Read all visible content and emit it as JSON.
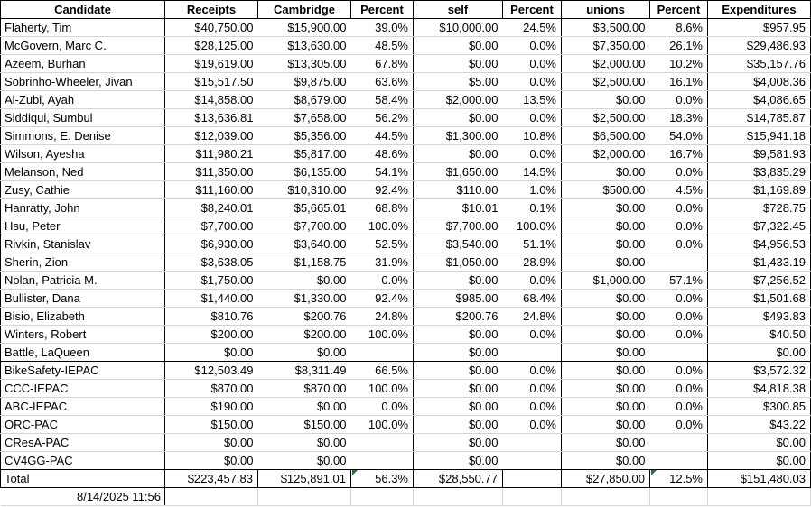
{
  "header": {
    "columns": [
      "Candidate",
      "Receipts",
      "Cambridge",
      "Percent",
      "self",
      "Percent",
      "unions",
      "Percent",
      "Expenditures"
    ]
  },
  "rows": [
    {
      "name": "Flaherty, Tim",
      "receipts": "$40,750.00",
      "cambridge": "$15,900.00",
      "cambridge_pct": "39.0%",
      "self": "$10,000.00",
      "self_pct": "24.5%",
      "unions": "$3,500.00",
      "unions_pct": "8.6%",
      "expenditures": "$957.95",
      "section": "candidates"
    },
    {
      "name": "McGovern, Marc C.",
      "receipts": "$28,125.00",
      "cambridge": "$13,630.00",
      "cambridge_pct": "48.5%",
      "self": "$0.00",
      "self_pct": "0.0%",
      "unions": "$7,350.00",
      "unions_pct": "26.1%",
      "expenditures": "$29,486.93",
      "section": "candidates"
    },
    {
      "name": "Azeem, Burhan",
      "receipts": "$19,619.00",
      "cambridge": "$13,305.00",
      "cambridge_pct": "67.8%",
      "self": "$0.00",
      "self_pct": "0.0%",
      "unions": "$2,000.00",
      "unions_pct": "10.2%",
      "expenditures": "$35,157.76",
      "section": "candidates"
    },
    {
      "name": "Sobrinho-Wheeler, Jivan",
      "receipts": "$15,517.50",
      "cambridge": "$9,875.00",
      "cambridge_pct": "63.6%",
      "self": "$5.00",
      "self_pct": "0.0%",
      "unions": "$2,500.00",
      "unions_pct": "16.1%",
      "expenditures": "$4,008.36",
      "section": "candidates"
    },
    {
      "name": "Al-Zubi, Ayah",
      "receipts": "$14,858.00",
      "cambridge": "$8,679.00",
      "cambridge_pct": "58.4%",
      "self": "$2,000.00",
      "self_pct": "13.5%",
      "unions": "$0.00",
      "unions_pct": "0.0%",
      "expenditures": "$4,086.65",
      "section": "candidates"
    },
    {
      "name": "Siddiqui, Sumbul",
      "receipts": "$13,636.81",
      "cambridge": "$7,658.00",
      "cambridge_pct": "56.2%",
      "self": "$0.00",
      "self_pct": "0.0%",
      "unions": "$2,500.00",
      "unions_pct": "18.3%",
      "expenditures": "$14,785.87",
      "section": "candidates"
    },
    {
      "name": "Simmons, E. Denise",
      "receipts": "$12,039.00",
      "cambridge": "$5,356.00",
      "cambridge_pct": "44.5%",
      "self": "$1,300.00",
      "self_pct": "10.8%",
      "unions": "$6,500.00",
      "unions_pct": "54.0%",
      "expenditures": "$15,941.18",
      "section": "candidates"
    },
    {
      "name": "Wilson, Ayesha",
      "receipts": "$11,980.21",
      "cambridge": "$5,817.00",
      "cambridge_pct": "48.6%",
      "self": "$0.00",
      "self_pct": "0.0%",
      "unions": "$2,000.00",
      "unions_pct": "16.7%",
      "expenditures": "$9,581.93",
      "section": "candidates"
    },
    {
      "name": "Melanson, Ned",
      "receipts": "$11,350.00",
      "cambridge": "$6,135.00",
      "cambridge_pct": "54.1%",
      "self": "$1,650.00",
      "self_pct": "14.5%",
      "unions": "$0.00",
      "unions_pct": "0.0%",
      "expenditures": "$3,835.29",
      "section": "candidates"
    },
    {
      "name": "Zusy, Cathie",
      "receipts": "$11,160.00",
      "cambridge": "$10,310.00",
      "cambridge_pct": "92.4%",
      "self": "$110.00",
      "self_pct": "1.0%",
      "unions": "$500.00",
      "unions_pct": "4.5%",
      "expenditures": "$1,169.89",
      "section": "candidates"
    },
    {
      "name": "Hanratty, John",
      "receipts": "$8,240.01",
      "cambridge": "$5,665.01",
      "cambridge_pct": "68.8%",
      "self": "$10.01",
      "self_pct": "0.1%",
      "unions": "$0.00",
      "unions_pct": "0.0%",
      "expenditures": "$728.75",
      "section": "candidates"
    },
    {
      "name": "Hsu, Peter",
      "receipts": "$7,700.00",
      "cambridge": "$7,700.00",
      "cambridge_pct": "100.0%",
      "self": "$7,700.00",
      "self_pct": "100.0%",
      "unions": "$0.00",
      "unions_pct": "0.0%",
      "expenditures": "$7,322.45",
      "section": "candidates"
    },
    {
      "name": "Rivkin, Stanislav",
      "receipts": "$6,930.00",
      "cambridge": "$3,640.00",
      "cambridge_pct": "52.5%",
      "self": "$3,540.00",
      "self_pct": "51.1%",
      "unions": "$0.00",
      "unions_pct": "0.0%",
      "expenditures": "$4,956.53",
      "section": "candidates"
    },
    {
      "name": "Sherin, Zion",
      "receipts": "$3,638.05",
      "cambridge": "$1,158.75",
      "cambridge_pct": "31.9%",
      "self": "$1,050.00",
      "self_pct": "28.9%",
      "unions": "$0.00",
      "unions_pct": "",
      "expenditures": "$1,433.19",
      "section": "candidates"
    },
    {
      "name": "Nolan, Patricia M.",
      "receipts": "$1,750.00",
      "cambridge": "$0.00",
      "cambridge_pct": "0.0%",
      "self": "$0.00",
      "self_pct": "0.0%",
      "unions": "$1,000.00",
      "unions_pct": "57.1%",
      "expenditures": "$7,256.52",
      "section": "candidates"
    },
    {
      "name": "Bullister, Dana",
      "receipts": "$1,440.00",
      "cambridge": "$1,330.00",
      "cambridge_pct": "92.4%",
      "self": "$985.00",
      "self_pct": "68.4%",
      "unions": "$0.00",
      "unions_pct": "0.0%",
      "expenditures": "$1,501.68",
      "section": "candidates"
    },
    {
      "name": "Bisio, Elizabeth",
      "receipts": "$810.76",
      "cambridge": "$200.76",
      "cambridge_pct": "24.8%",
      "self": "$200.76",
      "self_pct": "24.8%",
      "unions": "$0.00",
      "unions_pct": "0.0%",
      "expenditures": "$493.83",
      "section": "candidates"
    },
    {
      "name": "Winters, Robert",
      "receipts": "$200.00",
      "cambridge": "$200.00",
      "cambridge_pct": "100.0%",
      "self": "$0.00",
      "self_pct": "0.0%",
      "unions": "$0.00",
      "unions_pct": "0.0%",
      "expenditures": "$40.50",
      "section": "candidates"
    },
    {
      "name": "Battle, LaQueen",
      "receipts": "$0.00",
      "cambridge": "$0.00",
      "cambridge_pct": "",
      "self": "$0.00",
      "self_pct": "",
      "unions": "$0.00",
      "unions_pct": "",
      "expenditures": "$0.00",
      "section": "candidates"
    },
    {
      "name": "BikeSafety-IEPAC",
      "receipts": "$12,503.49",
      "cambridge": "$8,311.49",
      "cambridge_pct": "66.5%",
      "self": "$0.00",
      "self_pct": "0.0%",
      "unions": "$0.00",
      "unions_pct": "0.0%",
      "expenditures": "$3,572.32",
      "section": "pacs"
    },
    {
      "name": "CCC-IEPAC",
      "receipts": "$870.00",
      "cambridge": "$870.00",
      "cambridge_pct": "100.0%",
      "self": "$0.00",
      "self_pct": "0.0%",
      "unions": "$0.00",
      "unions_pct": "0.0%",
      "expenditures": "$4,818.38",
      "section": "pacs"
    },
    {
      "name": "ABC-IEPAC",
      "receipts": "$190.00",
      "cambridge": "$0.00",
      "cambridge_pct": "0.0%",
      "self": "$0.00",
      "self_pct": "0.0%",
      "unions": "$0.00",
      "unions_pct": "0.0%",
      "expenditures": "$300.85",
      "section": "pacs"
    },
    {
      "name": "ORC-PAC",
      "receipts": "$150.00",
      "cambridge": "$150.00",
      "cambridge_pct": "100.0%",
      "self": "$0.00",
      "self_pct": "0.0%",
      "unions": "$0.00",
      "unions_pct": "0.0%",
      "expenditures": "$43.22",
      "section": "pacs"
    },
    {
      "name": "CResA-PAC",
      "receipts": "$0.00",
      "cambridge": "$0.00",
      "cambridge_pct": "",
      "self": "$0.00",
      "self_pct": "",
      "unions": "$0.00",
      "unions_pct": "",
      "expenditures": "$0.00",
      "section": "pacs"
    },
    {
      "name": "CV4GG-PAC",
      "receipts": "$0.00",
      "cambridge": "$0.00",
      "cambridge_pct": "",
      "self": "$0.00",
      "self_pct": "",
      "unions": "$0.00",
      "unions_pct": "",
      "expenditures": "$0.00",
      "section": "pacs"
    }
  ],
  "total": {
    "label": "Total",
    "receipts": "$223,457.83",
    "cambridge": "$125,891.01",
    "cambridge_pct": "56.3%",
    "self": "$28,550.77",
    "self_pct": "",
    "unions": "$27,850.00",
    "unions_pct": "12.5%",
    "expenditures": "$151,480.03"
  },
  "footer": {
    "timestamp": "8/14/2025 11:56"
  },
  "colors": {
    "border_black": "#000000",
    "gridline_gray": "#d4d4d4",
    "error_flag_green": "#1e7b34",
    "background": "#ffffff",
    "text": "#000000"
  }
}
